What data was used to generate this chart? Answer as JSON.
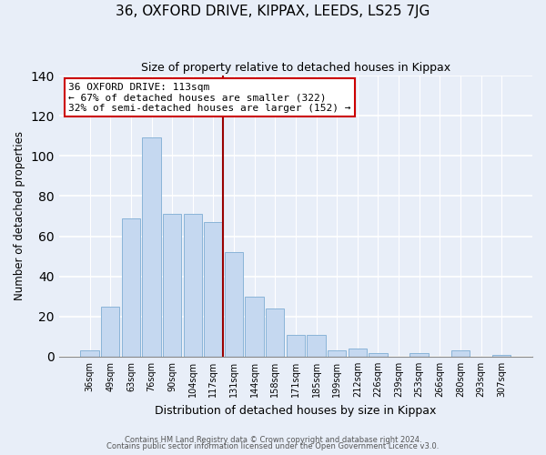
{
  "title": "36, OXFORD DRIVE, KIPPAX, LEEDS, LS25 7JG",
  "subtitle": "Size of property relative to detached houses in Kippax",
  "xlabel": "Distribution of detached houses by size in Kippax",
  "ylabel": "Number of detached properties",
  "bar_labels": [
    "36sqm",
    "49sqm",
    "63sqm",
    "76sqm",
    "90sqm",
    "104sqm",
    "117sqm",
    "131sqm",
    "144sqm",
    "158sqm",
    "171sqm",
    "185sqm",
    "199sqm",
    "212sqm",
    "226sqm",
    "239sqm",
    "253sqm",
    "266sqm",
    "280sqm",
    "293sqm",
    "307sqm"
  ],
  "bar_values": [
    3,
    25,
    69,
    109,
    71,
    71,
    67,
    52,
    30,
    24,
    11,
    11,
    3,
    4,
    2,
    0,
    2,
    0,
    3,
    0,
    1
  ],
  "bar_color": "#c5d8f0",
  "bar_edge_color": "#8ab4d8",
  "vline_color": "#990000",
  "annotation_title": "36 OXFORD DRIVE: 113sqm",
  "annotation_line1": "← 67% of detached houses are smaller (322)",
  "annotation_line2": "32% of semi-detached houses are larger (152) →",
  "annotation_box_color": "#ffffff",
  "annotation_box_edge": "#cc0000",
  "ylim": [
    0,
    140
  ],
  "yticks": [
    0,
    20,
    40,
    60,
    80,
    100,
    120,
    140
  ],
  "footer1": "Contains HM Land Registry data © Crown copyright and database right 2024.",
  "footer2": "Contains public sector information licensed under the Open Government Licence v3.0.",
  "bg_color": "#e8eef8"
}
